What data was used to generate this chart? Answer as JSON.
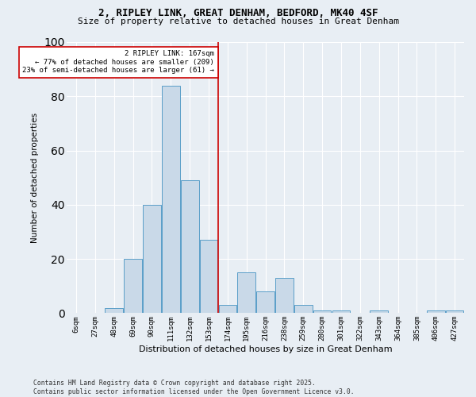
{
  "title_line1": "2, RIPLEY LINK, GREAT DENHAM, BEDFORD, MK40 4SF",
  "title_line2": "Size of property relative to detached houses in Great Denham",
  "xlabel": "Distribution of detached houses by size in Great Denham",
  "ylabel": "Number of detached properties",
  "categories": [
    "6sqm",
    "27sqm",
    "48sqm",
    "69sqm",
    "90sqm",
    "111sqm",
    "132sqm",
    "153sqm",
    "174sqm",
    "195sqm",
    "216sqm",
    "238sqm",
    "259sqm",
    "280sqm",
    "301sqm",
    "322sqm",
    "343sqm",
    "364sqm",
    "385sqm",
    "406sqm",
    "427sqm"
  ],
  "values": [
    0,
    0,
    2,
    20,
    40,
    84,
    49,
    27,
    3,
    15,
    8,
    13,
    3,
    1,
    1,
    0,
    1,
    0,
    0,
    1,
    1
  ],
  "bar_color": "#c9d9e8",
  "bar_edge_color": "#5a9ec8",
  "annotation_line1": "2 RIPLEY LINK: 167sqm",
  "annotation_line2": "← 77% of detached houses are smaller (209)",
  "annotation_line3": "23% of semi-detached houses are larger (61) →",
  "annotation_box_color": "#cc0000",
  "ylim": [
    0,
    100
  ],
  "yticks": [
    0,
    20,
    40,
    60,
    80,
    100
  ],
  "background_color": "#e8eef4",
  "grid_color": "#ffffff",
  "footer_line1": "Contains HM Land Registry data © Crown copyright and database right 2025.",
  "footer_line2": "Contains public sector information licensed under the Open Government Licence v3.0."
}
